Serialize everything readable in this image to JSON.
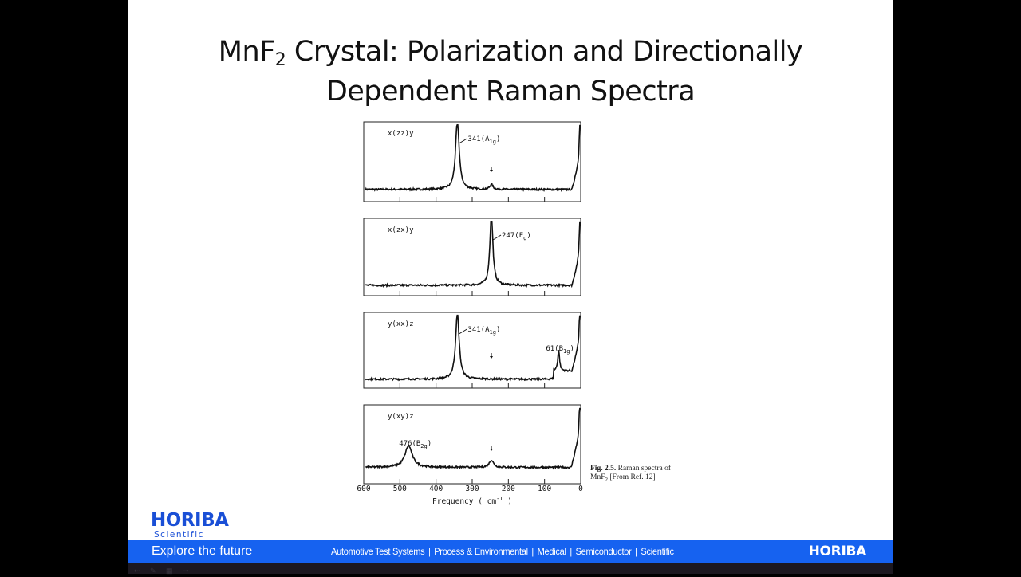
{
  "slide": {
    "title_prefix": "MnF",
    "title_subscript": "2",
    "title_rest_line1": " Crystal: Polarization and Directionally",
    "title_line2": "Dependent Raman Spectra"
  },
  "caption": {
    "fig_label": "Fig. 2.5.",
    "text_line1": " Raman spectra of",
    "text_line2_prefix": "MnF",
    "text_line2_sub": "2",
    "text_line2_rest": " [From Ref. 12]"
  },
  "footer": {
    "logo": "HORIBA",
    "logo_sub": "Scientific",
    "tagline": "Explore the future",
    "divisions": [
      "Automotive Test Systems",
      "Process & Environmental",
      "Medical",
      "Semiconductor",
      "Scientific"
    ],
    "right_logo": "HORIBA",
    "bar_color": "#1662f0",
    "brand_color": "#1a4fd6"
  },
  "player_controls": [
    "prev-icon",
    "pen-icon",
    "slides-icon",
    "next-icon"
  ],
  "chart_data": {
    "type": "line",
    "title": "Raman spectra of MnF2",
    "xlabel": "Frequency ( cm-1 )",
    "ylabel": "",
    "xlim": [
      600,
      0
    ],
    "x_ticks": [
      600,
      500,
      400,
      300,
      200,
      100,
      0
    ],
    "x_tick_labels": [
      "600",
      "500",
      "400",
      "300",
      "200",
      "100",
      "0"
    ],
    "grid": false,
    "legend": "none",
    "panels": [
      {
        "label": "x(zz)y",
        "peaks": [
          {
            "position": 341,
            "height": 0.95,
            "width": 6,
            "label": "341",
            "mode": "A",
            "mode_sub": "1g"
          },
          {
            "position": 247,
            "height": 0.07,
            "width": 5,
            "label": "",
            "mode": "",
            "mode_sub": ""
          }
        ],
        "arrow_at": 247,
        "rayleigh_edge": 18,
        "baseline": 0.1
      },
      {
        "label": "x(zx)y",
        "peaks": [
          {
            "position": 247,
            "height": 1.0,
            "width": 5,
            "label": "247",
            "mode": "E",
            "mode_sub": "g"
          }
        ],
        "arrow_at": null,
        "rayleigh_edge": 18,
        "baseline": 0.08
      },
      {
        "label": "y(xx)z",
        "peaks": [
          {
            "position": 341,
            "height": 0.95,
            "width": 6,
            "label": "341",
            "mode": "A",
            "mode_sub": "1g"
          },
          {
            "position": 61,
            "height": 0.3,
            "width": 3,
            "label": "61",
            "mode": "B",
            "mode_sub": "1g"
          }
        ],
        "arrow_at": 247,
        "rayleigh_edge": 18,
        "baseline": 0.06
      },
      {
        "label": "y(xy)z",
        "peaks": [
          {
            "position": 476,
            "height": 0.3,
            "width": 12,
            "label": "476",
            "mode": "B",
            "mode_sub": "2g"
          },
          {
            "position": 247,
            "height": 0.1,
            "width": 7,
            "label": "",
            "mode": "",
            "mode_sub": ""
          }
        ],
        "arrow_at": 247,
        "rayleigh_edge": 20,
        "baseline": 0.16
      }
    ]
  }
}
